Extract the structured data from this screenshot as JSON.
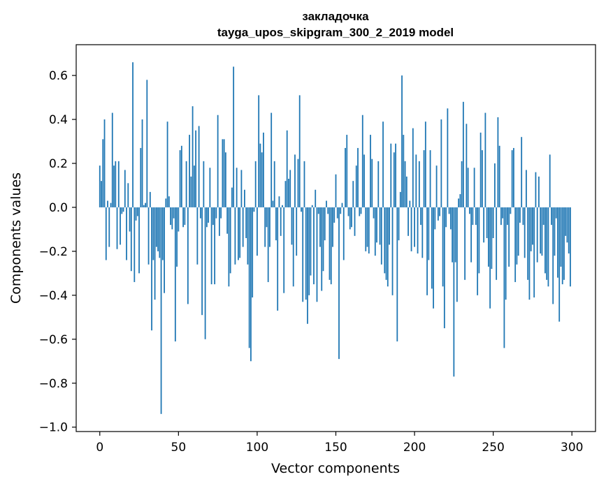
{
  "chart_data": {
    "type": "bar",
    "title_line1": "закладочка",
    "title_line2": "tayga_upos_skipgram_300_2_2019 model",
    "xlabel": "Vector components",
    "ylabel": "Components values",
    "xlim": [
      -15,
      315
    ],
    "ylim": [
      -1.02,
      0.74
    ],
    "xticks": [
      0,
      50,
      100,
      150,
      200,
      250,
      300
    ],
    "yticks": [
      0.6,
      0.4,
      0.2,
      0.0,
      -0.2,
      -0.4,
      -0.6,
      -0.8,
      -1.0
    ],
    "ytick_labels": [
      "0.6",
      "0.4",
      "0.2",
      "0.0",
      "−0.2",
      "−0.4",
      "−0.6",
      "−0.8",
      "−1.0"
    ],
    "bar_color": "#1f77b4",
    "values": [
      0.19,
      0.12,
      0.31,
      0.4,
      -0.24,
      0.03,
      -0.18,
      0.02,
      0.43,
      0.19,
      0.21,
      -0.19,
      0.21,
      -0.17,
      -0.03,
      -0.02,
      0.17,
      -0.24,
      0.11,
      -0.11,
      -0.29,
      0.66,
      -0.34,
      -0.06,
      -0.04,
      -0.3,
      0.27,
      0.4,
      0.01,
      0.02,
      0.58,
      -0.26,
      0.07,
      -0.56,
      -0.24,
      -0.42,
      -0.18,
      -0.2,
      -0.23,
      -0.94,
      -0.24,
      -0.39,
      0.04,
      0.39,
      0.05,
      -0.08,
      -0.1,
      -0.05,
      -0.61,
      -0.27,
      -0.11,
      0.26,
      0.28,
      -0.09,
      -0.08,
      0.21,
      -0.44,
      0.33,
      0.14,
      0.46,
      0.19,
      0.35,
      -0.26,
      0.37,
      -0.05,
      -0.49,
      0.21,
      -0.6,
      -0.09,
      -0.07,
      0.18,
      -0.35,
      -0.08,
      -0.35,
      -0.05,
      0.42,
      -0.13,
      -0.05,
      0.31,
      0.31,
      0.25,
      -0.12,
      -0.36,
      -0.3,
      0.09,
      0.64,
      -0.26,
      0.18,
      -0.24,
      -0.23,
      0.17,
      -0.18,
      0.08,
      -0.14,
      -0.26,
      -0.64,
      -0.7,
      -0.41,
      -0.02,
      0.21,
      -0.22,
      0.51,
      0.29,
      0.25,
      0.34,
      -0.18,
      -0.09,
      -0.34,
      -0.18,
      0.43,
      0.03,
      0.21,
      -0.15,
      -0.47,
      0.05,
      -0.13,
      0.01,
      -0.39,
      0.12,
      0.35,
      0.13,
      0.17,
      -0.17,
      -0.36,
      0.24,
      -0.22,
      0.22,
      0.51,
      -0.02,
      -0.43,
      0.21,
      -0.42,
      -0.53,
      -0.4,
      -0.31,
      0.01,
      -0.35,
      0.08,
      -0.43,
      -0.03,
      -0.18,
      -0.38,
      -0.29,
      -0.15,
      0.03,
      -0.03,
      -0.33,
      -0.35,
      -0.18,
      -0.07,
      0.15,
      -0.05,
      -0.69,
      -0.03,
      0.02,
      -0.24,
      0.27,
      0.33,
      -0.04,
      -0.1,
      -0.09,
      0.12,
      -0.13,
      0.19,
      0.27,
      -0.04,
      -0.03,
      0.42,
      0.24,
      -0.2,
      -0.18,
      -0.21,
      0.33,
      0.22,
      -0.05,
      -0.22,
      -0.16,
      0.21,
      -0.17,
      -0.26,
      0.39,
      -0.3,
      -0.33,
      -0.36,
      -0.17,
      0.29,
      -0.4,
      0.25,
      0.29,
      -0.61,
      -0.15,
      0.07,
      0.6,
      0.33,
      0.21,
      0.14,
      -0.13,
      0.03,
      -0.2,
      0.36,
      -0.18,
      0.24,
      -0.21,
      0.21,
      -0.08,
      -0.23,
      0.26,
      0.39,
      -0.4,
      -0.24,
      0.26,
      -0.37,
      -0.46,
      -0.1,
      0.19,
      -0.06,
      -0.04,
      0.4,
      -0.36,
      -0.55,
      -0.09,
      0.45,
      -0.03,
      -0.1,
      -0.25,
      -0.77,
      -0.25,
      -0.43,
      0.04,
      0.06,
      0.21,
      0.48,
      -0.33,
      0.38,
      0.18,
      -0.03,
      -0.25,
      -0.08,
      0.18,
      -0.08,
      -0.4,
      -0.3,
      0.34,
      0.26,
      -0.16,
      0.43,
      -0.14,
      -0.27,
      -0.46,
      -0.28,
      -0.14,
      0.2,
      -0.33,
      0.41,
      0.28,
      -0.08,
      -0.05,
      -0.64,
      -0.42,
      -0.08,
      -0.27,
      -0.03,
      0.26,
      0.27,
      -0.34,
      -0.26,
      -0.22,
      -0.07,
      0.32,
      -0.08,
      -0.23,
      0.17,
      -0.33,
      -0.42,
      -0.2,
      -0.17,
      -0.41,
      0.16,
      -0.25,
      0.14,
      -0.21,
      -0.22,
      -0.08,
      -0.3,
      -0.33,
      -0.36,
      0.24,
      -0.08,
      -0.44,
      -0.22,
      -0.05,
      -0.32,
      -0.52,
      -0.27,
      -0.35,
      -0.33,
      -0.13,
      -0.16,
      -0.21,
      -0.36
    ]
  }
}
